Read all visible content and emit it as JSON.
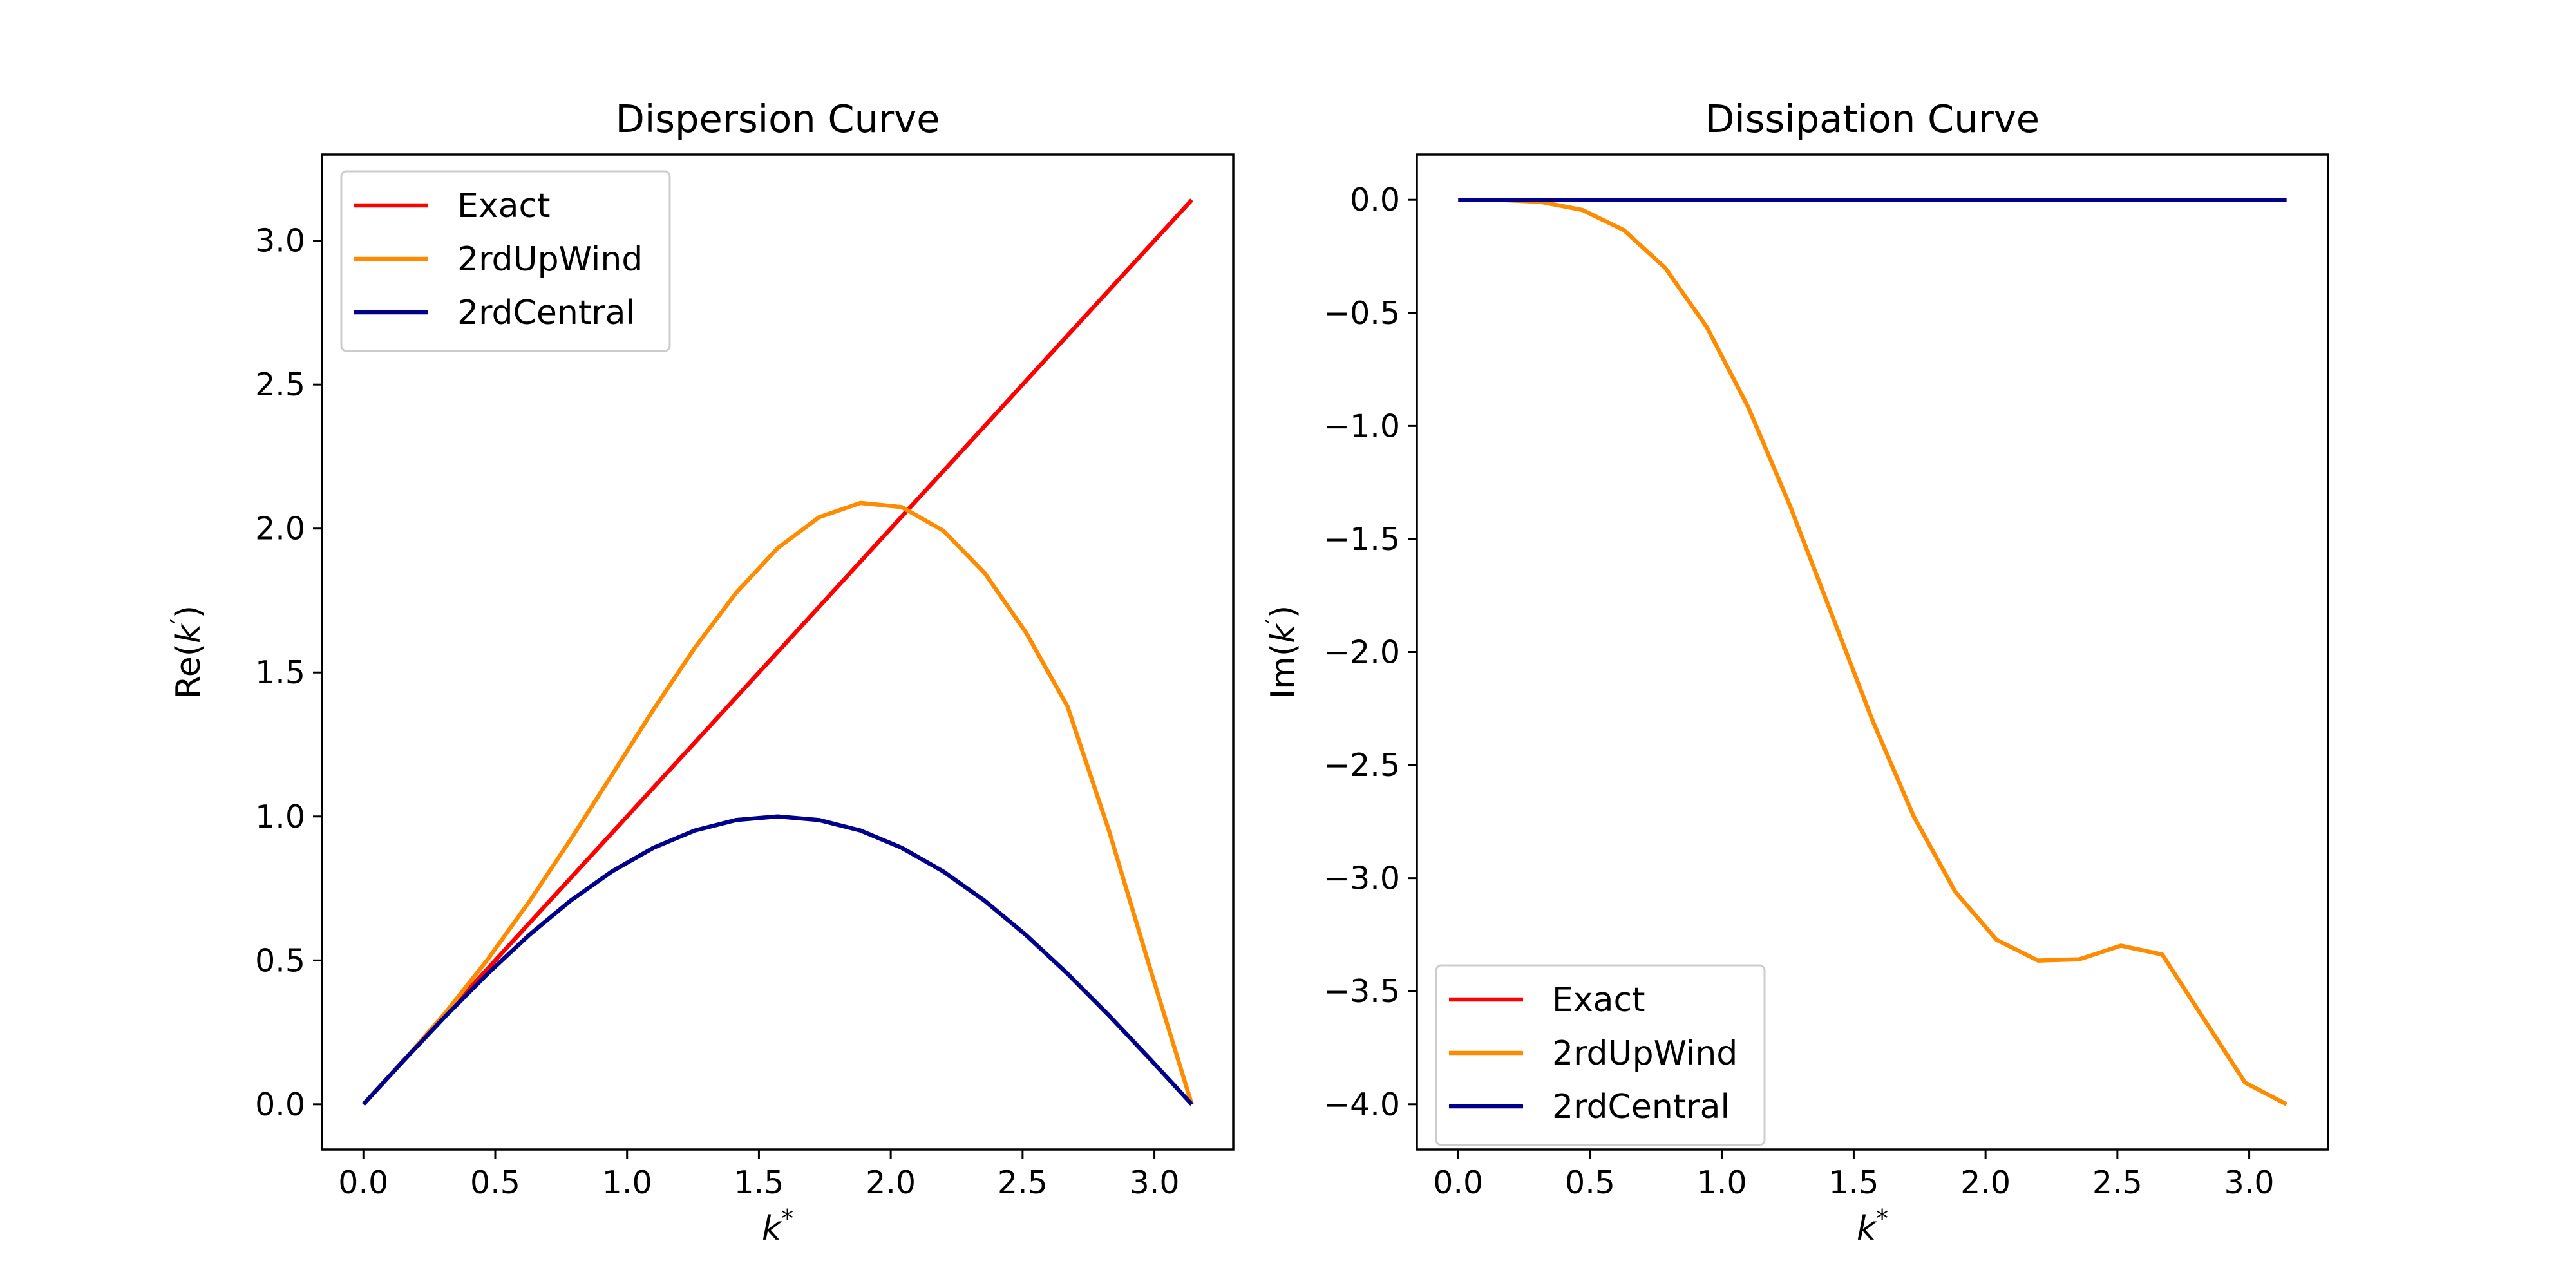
{
  "chart_data": [
    {
      "type": "line",
      "title": "Dispersion Curve",
      "xlabel_base": "k",
      "xlabel_sup": "*",
      "ylabel_prefix": "Re(",
      "ylabel_var": "k",
      "ylabel_sup": "′",
      "ylabel_suffix": ")",
      "xlim": [
        -0.157,
        3.299
      ],
      "ylim": [
        -0.157,
        3.299
      ],
      "xticks": [
        "0.0",
        "0.5",
        "1.0",
        "1.5",
        "2.0",
        "2.5",
        "3.0"
      ],
      "yticks": [
        "0.0",
        "0.5",
        "1.0",
        "1.5",
        "2.0",
        "2.5",
        "3.0"
      ],
      "legend": {
        "position": "upper left",
        "entries": [
          "Exact",
          "2rdUpWind",
          "2rdCentral"
        ]
      },
      "x": [
        0.0,
        0.1571,
        0.3142,
        0.4712,
        0.6283,
        0.7854,
        0.9425,
        1.0996,
        1.2566,
        1.4137,
        1.5708,
        1.7279,
        1.885,
        2.042,
        2.1991,
        2.3562,
        2.5133,
        2.6704,
        2.8274,
        2.9845,
        3.1416
      ],
      "series": [
        {
          "name": "Exact",
          "color": "#ff0000",
          "values": [
            0.0,
            0.1571,
            0.3142,
            0.4712,
            0.6283,
            0.7854,
            0.9425,
            1.0996,
            1.2566,
            1.4137,
            1.5708,
            1.7279,
            1.885,
            2.042,
            2.1991,
            2.3562,
            2.5133,
            2.6704,
            2.8274,
            2.9845,
            3.1416
          ]
        },
        {
          "name": "2rdUpWind",
          "color": "#ff8c00",
          "values": [
            0.0,
            0.1562,
            0.3214,
            0.503,
            0.703,
            0.919,
            1.1445,
            1.3705,
            1.5854,
            1.7768,
            1.9319,
            2.0391,
            2.089,
            2.0745,
            1.9928,
            1.8453,
            1.6383,
            1.3823,
            0.9511,
            0.4696,
            0.0
          ]
        },
        {
          "name": "2rdCentral",
          "color": "#00008b",
          "values": [
            0.0,
            0.1564,
            0.309,
            0.454,
            0.5878,
            0.7071,
            0.809,
            0.891,
            0.9511,
            0.9877,
            1.0,
            0.9877,
            0.9511,
            0.891,
            0.809,
            0.7071,
            0.5878,
            0.454,
            0.309,
            0.1564,
            0.0
          ]
        }
      ]
    },
    {
      "type": "line",
      "title": "Dissipation Curve",
      "xlabel_base": "k",
      "xlabel_sup": "*",
      "ylabel_prefix": "Im(",
      "ylabel_var": "k",
      "ylabel_sup": "′",
      "ylabel_suffix": ")",
      "xlim": [
        -0.157,
        3.299
      ],
      "ylim": [
        -4.2,
        0.2
      ],
      "xticks": [
        "0.0",
        "0.5",
        "1.0",
        "1.5",
        "2.0",
        "2.5",
        "3.0"
      ],
      "yticks": [
        "0.0",
        "−0.5",
        "−1.0",
        "−1.5",
        "−2.0",
        "−2.5",
        "−3.0",
        "−3.5",
        "−4.0"
      ],
      "legend": {
        "position": "lower left",
        "entries": [
          "Exact",
          "2rdUpWind",
          "2rdCentral"
        ]
      },
      "x": [
        0.0,
        0.1571,
        0.3142,
        0.4712,
        0.6283,
        0.7854,
        0.9425,
        1.0996,
        1.2566,
        1.4137,
        1.5708,
        1.7279,
        1.885,
        2.042,
        2.1991,
        2.3562,
        2.5133,
        2.6704,
        2.8274,
        2.9845,
        3.1416
      ],
      "series": [
        {
          "name": "Exact",
          "color": "#ff0000",
          "values": [
            0.0,
            0.0,
            0.0,
            0.0,
            0.0,
            0.0,
            0.0,
            0.0,
            0.0,
            0.0,
            0.0,
            0.0,
            0.0,
            0.0,
            0.0,
            0.0,
            0.0,
            0.0,
            0.0,
            0.0,
            0.0
          ]
        },
        {
          "name": "2rdUpWind",
          "color": "#ff8c00",
          "values": [
            0.0,
            -0.0006,
            -0.0094,
            -0.0452,
            -0.134,
            -0.3015,
            -0.5623,
            -0.9165,
            -1.348,
            -1.8246,
            -2.301,
            -2.7271,
            -3.0597,
            -3.2726,
            -3.3644,
            -3.3588,
            -3.2983,
            -3.3377,
            -3.6216,
            -3.904,
            -4.0
          ]
        },
        {
          "name": "2rdCentral",
          "color": "#00008b",
          "values": [
            0.0,
            0.0,
            0.0,
            0.0,
            0.0,
            0.0,
            0.0,
            0.0,
            0.0,
            0.0,
            0.0,
            0.0,
            0.0,
            0.0,
            0.0,
            0.0,
            0.0,
            0.0,
            0.0,
            0.0,
            0.0
          ]
        }
      ]
    }
  ]
}
